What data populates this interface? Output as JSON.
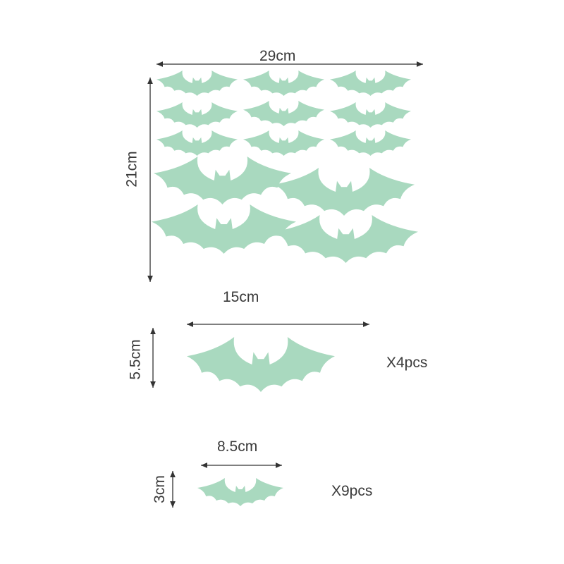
{
  "sheet": {
    "width_label": "29cm",
    "height_label": "21cm"
  },
  "large_bat": {
    "width_label": "15cm",
    "height_label": "5.5cm",
    "quantity_label": "X4pcs"
  },
  "small_bat": {
    "width_label": "8.5cm",
    "height_label": "3cm",
    "quantity_label": "X9pcs"
  },
  "colors": {
    "bat": "#a9d9bf",
    "line": "#333333"
  }
}
